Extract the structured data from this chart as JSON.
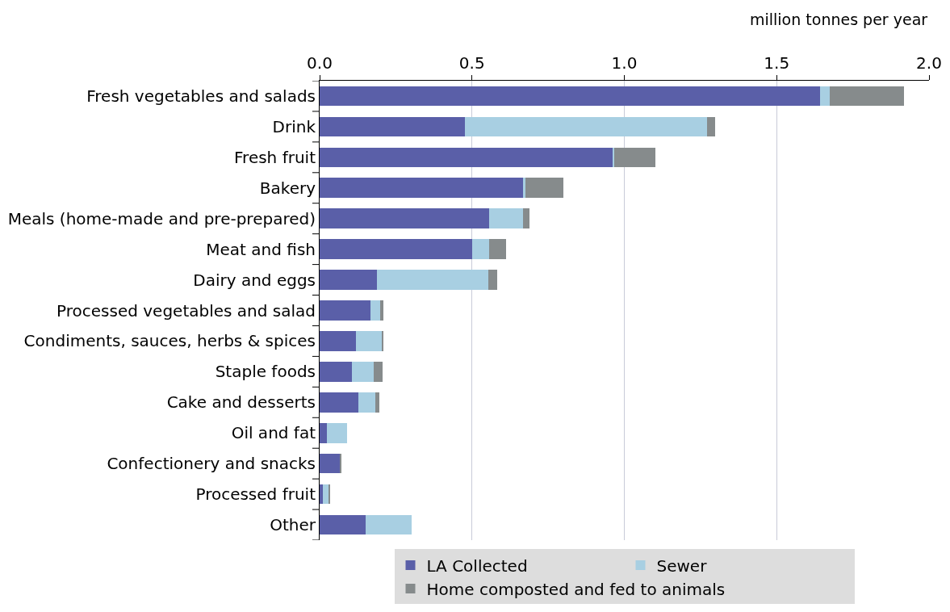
{
  "chart_data": {
    "type": "bar",
    "orientation": "horizontal",
    "stacked": true,
    "xlabel": "million tonnes per year",
    "categories": [
      "Fresh vegetables and salads",
      "Drink",
      "Fresh fruit",
      "Bakery",
      "Meals (home-made and pre-prepared)",
      "Meat and fish",
      "Dairy and eggs",
      "Processed vegetables and salad",
      "Condiments, sauces, herbs & spices",
      "Staple foods",
      "Cake and desserts",
      "Oil and fat",
      "Confectionery and snacks",
      "Processed fruit",
      "Other"
    ],
    "series": [
      {
        "name": "LA Collected",
        "color": "#5a5fa8",
        "values": [
          1.642,
          0.477,
          0.961,
          0.668,
          0.556,
          0.5,
          0.187,
          0.167,
          0.119,
          0.107,
          0.127,
          0.025,
          0.065,
          0.011,
          0.15
        ]
      },
      {
        "name": "Sewer",
        "color": "#a8cfe2",
        "values": [
          0.033,
          0.795,
          0.006,
          0.008,
          0.111,
          0.056,
          0.367,
          0.031,
          0.085,
          0.071,
          0.057,
          0.066,
          null,
          0.017,
          0.153
        ]
      },
      {
        "name": "Home composted and fed to animals",
        "color": "#868b8c",
        "values": [
          0.243,
          0.026,
          0.135,
          0.123,
          0.022,
          0.056,
          0.029,
          0.011,
          0.005,
          0.029,
          0.011,
          null,
          0.006,
          0.006,
          null
        ]
      }
    ],
    "xlim": [
      0,
      2.0
    ],
    "xticks": [
      {
        "value": 0,
        "label": "0.0"
      },
      {
        "value": 0.5,
        "label": "0.5"
      },
      {
        "value": 1.0,
        "label": "1.0"
      },
      {
        "value": 1.5,
        "label": "1.5"
      },
      {
        "value": 2.0,
        "label": "2.0"
      }
    ],
    "grid": "x",
    "legend": "bottom"
  }
}
